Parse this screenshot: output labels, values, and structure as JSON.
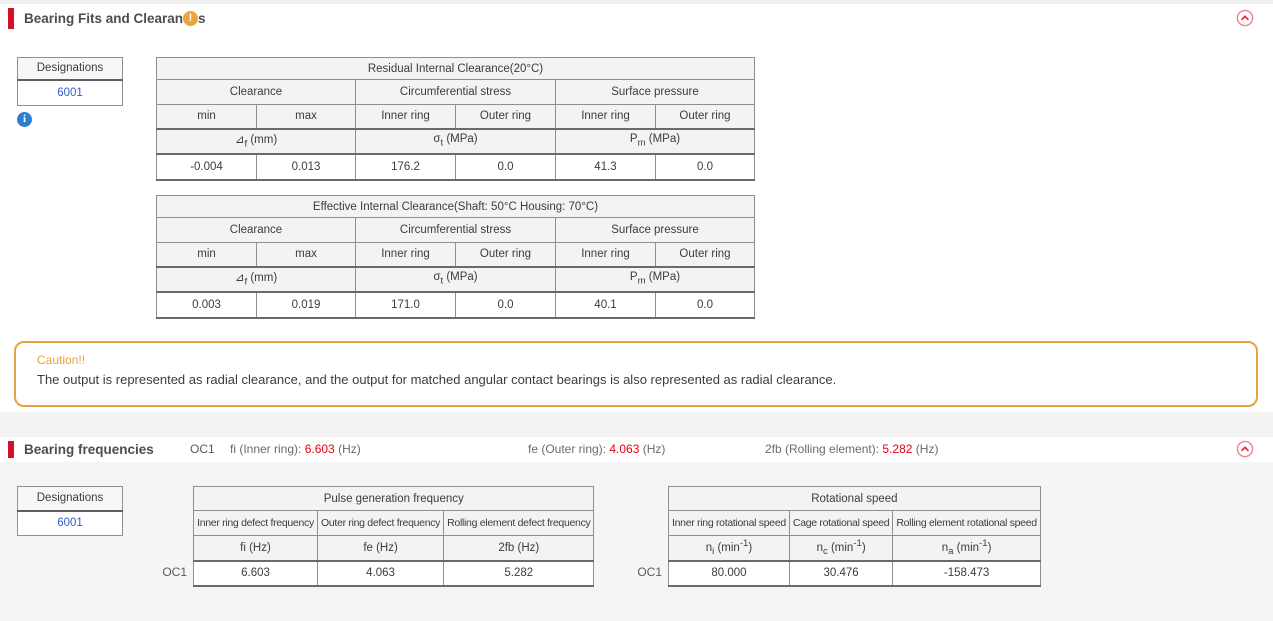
{
  "colors": {
    "accent_red": "#d01126",
    "caution_orange": "#e5a43f",
    "value_red": "#e50012",
    "link_blue": "#2e5fd0",
    "info_blue": "#2f80cc",
    "warning_orange": "#e9a63a"
  },
  "icons": {
    "warning": "!",
    "info": "i",
    "collapse": "chevron-up-circle"
  },
  "fits": {
    "title": "Bearing Fits and Clearances",
    "designations": {
      "header": "Designations",
      "value": "6001"
    },
    "clearance_tables": [
      {
        "title": "Residual Internal Clearance(20°C)",
        "groups": [
          "Clearance",
          "Circumferential stress",
          "Surface pressure"
        ],
        "subheaders": [
          "min",
          "max",
          "Inner ring",
          "Outer ring",
          "Inner ring",
          "Outer ring"
        ],
        "units_html": [
          "⊿<sub>f</sub> (mm)",
          "σ<sub>t</sub> (MPa)",
          "P<sub>m</sub> (MPa)"
        ],
        "values": [
          "-0.004",
          "0.013",
          "176.2",
          "0.0",
          "41.3",
          "0.0"
        ]
      },
      {
        "title": "Effective Internal Clearance(Shaft: 50°C Housing: 70°C)",
        "groups": [
          "Clearance",
          "Circumferential stress",
          "Surface pressure"
        ],
        "subheaders": [
          "min",
          "max",
          "Inner ring",
          "Outer ring",
          "Inner ring",
          "Outer ring"
        ],
        "units_html": [
          "⊿<sub>f</sub> (mm)",
          "σ<sub>t</sub> (MPa)",
          "P<sub>m</sub> (MPa)"
        ],
        "values": [
          "0.003",
          "0.019",
          "171.0",
          "0.0",
          "40.1",
          "0.0"
        ]
      }
    ],
    "caution": {
      "title": "Caution!!",
      "text": "The output is represented as radial clearance, and the output for matched angular contact bearings is also represented as radial clearance."
    }
  },
  "freq": {
    "title": "Bearing frequencies",
    "case_label": "OC1",
    "summary": [
      {
        "label": "fi (Inner ring):",
        "value": "6.603",
        "unit": "(Hz)"
      },
      {
        "label": "fe (Outer ring):",
        "value": "4.063",
        "unit": "(Hz)"
      },
      {
        "label": "2fb (Rolling element):",
        "value": "5.282",
        "unit": "(Hz)"
      }
    ],
    "designations": {
      "header": "Designations",
      "value": "6001"
    },
    "pulse": {
      "title": "Pulse generation frequency",
      "columns": [
        "Inner ring defect frequency",
        "Outer ring defect frequency",
        "Rolling element defect frequency"
      ],
      "units_html": [
        "fi (Hz)",
        "fe (Hz)",
        "2fb (Hz)"
      ],
      "row_label": "OC1",
      "values": [
        "6.603",
        "4.063",
        "5.282"
      ]
    },
    "speed": {
      "title": "Rotational speed",
      "columns": [
        "Inner ring rotational speed",
        "Cage rotational speed",
        "Rolling element rotational speed"
      ],
      "units_html": [
        "n<sub>i</sub> (min<sup>-1</sup>)",
        "n<sub>c</sub> (min<sup>-1</sup>)",
        "n<sub>a</sub> (min<sup>-1</sup>)"
      ],
      "row_label": "OC1",
      "values": [
        "80.000",
        "30.476",
        "-158.473"
      ]
    }
  }
}
